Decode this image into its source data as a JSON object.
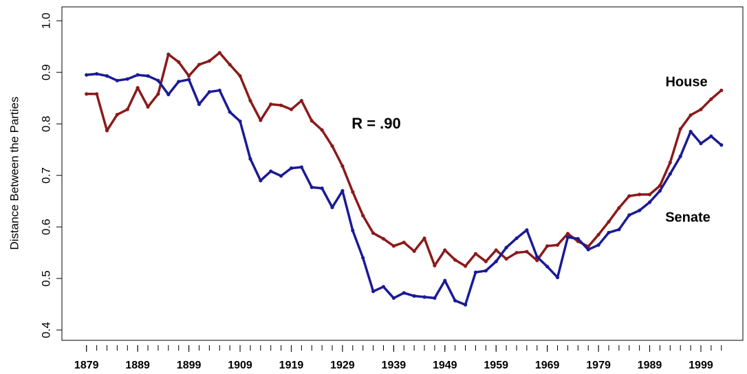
{
  "chart_data": {
    "type": "line",
    "y_label": "Distance Between the Parties",
    "annotation": "R = .90",
    "x": [
      1879,
      1881,
      1883,
      1885,
      1887,
      1889,
      1891,
      1893,
      1895,
      1897,
      1899,
      1901,
      1903,
      1905,
      1907,
      1909,
      1911,
      1913,
      1915,
      1917,
      1919,
      1921,
      1923,
      1925,
      1927,
      1929,
      1931,
      1933,
      1935,
      1937,
      1939,
      1941,
      1943,
      1945,
      1947,
      1949,
      1951,
      1953,
      1955,
      1957,
      1959,
      1961,
      1963,
      1965,
      1967,
      1969,
      1971,
      1973,
      1975,
      1977,
      1979,
      1981,
      1983,
      1985,
      1987,
      1989,
      1991,
      1993,
      1995,
      1997,
      1999,
      2001,
      2003
    ],
    "series": [
      {
        "name": "House",
        "color": "#8b1a1a",
        "values": [
          0.858,
          0.858,
          0.787,
          0.818,
          0.828,
          0.87,
          0.833,
          0.858,
          0.935,
          0.92,
          0.893,
          0.915,
          0.922,
          0.938,
          0.915,
          0.893,
          0.845,
          0.807,
          0.838,
          0.836,
          0.828,
          0.845,
          0.806,
          0.788,
          0.757,
          0.718,
          0.668,
          0.622,
          0.588,
          0.577,
          0.563,
          0.57,
          0.553,
          0.578,
          0.525,
          0.555,
          0.536,
          0.524,
          0.548,
          0.533,
          0.555,
          0.538,
          0.55,
          0.552,
          0.535,
          0.563,
          0.565,
          0.587,
          0.572,
          0.562,
          0.585,
          0.61,
          0.637,
          0.66,
          0.663,
          0.663,
          0.68,
          0.725,
          0.79,
          0.817,
          0.828,
          0.848,
          0.865
        ]
      },
      {
        "name": "Senate",
        "color": "#1a1a96",
        "values": [
          0.895,
          0.897,
          0.893,
          0.884,
          0.887,
          0.895,
          0.893,
          0.884,
          0.857,
          0.882,
          0.886,
          0.838,
          0.862,
          0.865,
          0.823,
          0.805,
          0.732,
          0.69,
          0.708,
          0.699,
          0.714,
          0.716,
          0.677,
          0.675,
          0.638,
          0.67,
          0.593,
          0.54,
          0.475,
          0.484,
          0.462,
          0.472,
          0.466,
          0.464,
          0.462,
          0.496,
          0.457,
          0.449,
          0.512,
          0.515,
          0.533,
          0.56,
          0.578,
          0.594,
          0.542,
          0.523,
          0.502,
          0.58,
          0.577,
          0.556,
          0.565,
          0.589,
          0.595,
          0.623,
          0.632,
          0.648,
          0.67,
          0.703,
          0.737,
          0.785,
          0.762,
          0.776,
          0.759
        ]
      }
    ],
    "xlim": [
      1874.2,
      2007.2
    ],
    "ylim": [
      0.38,
      1.027
    ],
    "xticks": [
      1879,
      1889,
      1899,
      1909,
      1919,
      1929,
      1939,
      1949,
      1959,
      1969,
      1979,
      1989,
      1999
    ],
    "xticks_minor": [
      1879,
      1881,
      1883,
      1885,
      1887,
      1889,
      1891,
      1893,
      1895,
      1897,
      1899,
      1901,
      1903,
      1905,
      1907,
      1909,
      1911,
      1913,
      1915,
      1917,
      1919,
      1921,
      1923,
      1925,
      1927,
      1929,
      1931,
      1933,
      1935,
      1937,
      1939,
      1941,
      1943,
      1945,
      1947,
      1949,
      1951,
      1953,
      1955,
      1957,
      1959,
      1961,
      1963,
      1965,
      1967,
      1969,
      1971,
      1973,
      1975,
      1977,
      1979,
      1981,
      1983,
      1985,
      1987,
      1989,
      1991,
      1993,
      1995,
      1997,
      1999,
      2001,
      2003
    ],
    "yticks": [
      0.4,
      0.5,
      0.6,
      0.7,
      0.8,
      0.9,
      {
        "value": 1,
        "label": "1.0"
      }
    ],
    "annotation_color": "#8b1a1a"
  }
}
